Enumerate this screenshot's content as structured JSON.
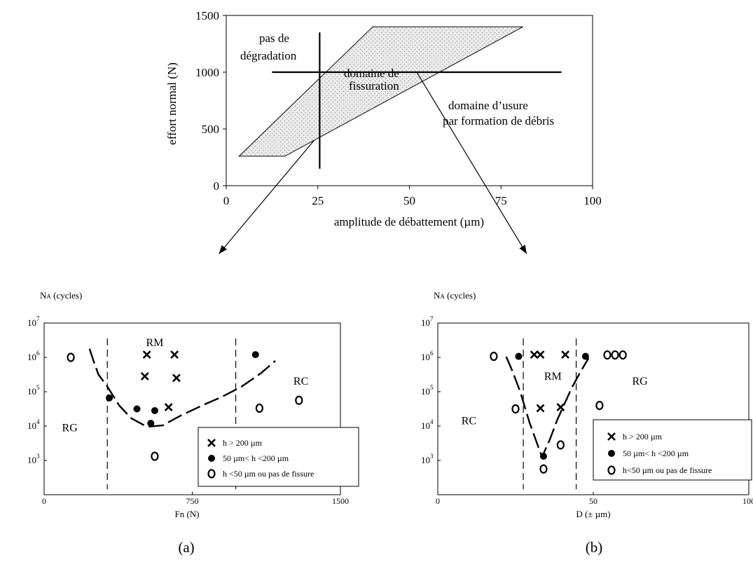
{
  "chart_data": [
    {
      "id": "top",
      "type": "area",
      "xlabel": "amplitude de débattement (µm)",
      "ylabel": "effort normal (N)",
      "xlim": [
        0,
        100
      ],
      "ylim": [
        0,
        1500
      ],
      "x_ticks": [
        0,
        25,
        50,
        75,
        100
      ],
      "y_ticks": [
        0,
        500,
        1000,
        1500
      ],
      "shaded_region": {
        "name": "domaine de fissuration",
        "polygon": [
          [
            3.5,
            260
          ],
          [
            40,
            1400
          ],
          [
            81,
            1400
          ],
          [
            16,
            260
          ]
        ]
      },
      "reference_lines": [
        {
          "orientation": "vertical",
          "x": 25.5,
          "y_range": [
            150,
            1350
          ]
        },
        {
          "orientation": "horizontal",
          "y": 1000,
          "x_range": [
            12.5,
            91.5
          ]
        }
      ],
      "annotations": {
        "no_damage_line1": "pas de",
        "no_damage_line2": "dégradation",
        "cracking_line1": "domaine de",
        "cracking_line2": "fissuration",
        "wear_line1": "domaine d’usure",
        "wear_line2": "par formation de débris"
      },
      "arrows": [
        {
          "from": [
            24,
            400
          ],
          "to": [
            -2,
            -600
          ]
        },
        {
          "from": [
            52,
            1000
          ],
          "to": [
            82,
            -600
          ]
        }
      ]
    },
    {
      "id": "a",
      "type": "scatter",
      "panel_label": "(a)",
      "y_axis_title_prefix": "N",
      "y_axis_title_sub": "A",
      "y_axis_title_suffix": " (cycles)",
      "xlabel": "Fn  (N)",
      "xlim": [
        0,
        1500
      ],
      "ylim_log10": [
        2,
        7
      ],
      "x_ticks": [
        0,
        750,
        1500
      ],
      "y_tick_exponents": [
        3,
        4,
        5,
        6,
        7
      ],
      "tick_base": "10",
      "regions": [
        {
          "label": "RM",
          "x": 560,
          "log_y": 6.33
        },
        {
          "label": "RC",
          "x": 1300,
          "log_y": 5.2
        },
        {
          "label": "RG",
          "x": 130,
          "log_y": 3.85
        }
      ],
      "dashed_verticals": [
        320,
        970
      ],
      "curve": [
        [
          230,
          6.25
        ],
        [
          250,
          5.9
        ],
        [
          275,
          5.5
        ],
        [
          320,
          5.15
        ],
        [
          380,
          4.6
        ],
        [
          440,
          4.23
        ],
        [
          520,
          3.98
        ],
        [
          600,
          4.02
        ],
        [
          690,
          4.3
        ],
        [
          800,
          4.6
        ],
        [
          900,
          4.85
        ],
        [
          1000,
          5.15
        ],
        [
          1100,
          5.55
        ],
        [
          1170,
          5.9
        ]
      ],
      "series": [
        {
          "name": "h > 200 µm",
          "marker": "cross",
          "points": [
            [
              520,
              6.08
            ],
            [
              660,
              6.08
            ],
            [
              510,
              5.45
            ],
            [
              670,
              5.4
            ],
            [
              630,
              4.55
            ]
          ]
        },
        {
          "name": "50 µm< h <200 µm",
          "marker": "dot",
          "points": [
            [
              330,
              4.82
            ],
            [
              1070,
              6.08
            ],
            [
              470,
              4.5
            ],
            [
              560,
              4.45
            ],
            [
              540,
              4.08
            ]
          ]
        },
        {
          "name": "h <50 µm ou pas de fissure",
          "marker": "ring",
          "points": [
            [
              135,
              6.0
            ],
            [
              1090,
              4.52
            ],
            [
              1290,
              4.75
            ],
            [
              560,
              3.12
            ]
          ]
        }
      ]
    },
    {
      "id": "b",
      "type": "scatter",
      "panel_label": "(b)",
      "y_axis_title_prefix": "N",
      "y_axis_title_sub": "A",
      "y_axis_title_suffix": " (cycles)",
      "xlabel": "D  (± µm)",
      "xlim": [
        0,
        100
      ],
      "ylim_log10": [
        2,
        7
      ],
      "x_ticks": [
        0,
        50,
        100
      ],
      "y_tick_exponents": [
        3,
        4,
        5,
        6,
        7
      ],
      "tick_base": "10",
      "regions": [
        {
          "label": "RM",
          "x": 37,
          "log_y": 5.35
        },
        {
          "label": "RG",
          "x": 65,
          "log_y": 5.2
        },
        {
          "label": "RC",
          "x": 10,
          "log_y": 4.05
        }
      ],
      "dashed_verticals": [
        27.5,
        44.5
      ],
      "curve": [
        [
          22,
          6.02
        ],
        [
          24,
          5.6
        ],
        [
          26.5,
          5.0
        ],
        [
          29.5,
          4.1
        ],
        [
          31.5,
          3.6
        ],
        [
          33.5,
          3.1
        ],
        [
          36,
          3.6
        ],
        [
          38.5,
          4.2
        ],
        [
          41,
          4.7
        ],
        [
          43,
          5.1
        ],
        [
          46,
          5.6
        ],
        [
          48.5,
          5.98
        ]
      ],
      "series": [
        {
          "name": "h > 200 µm",
          "marker": "cross",
          "points": [
            [
              31,
              6.08
            ],
            [
              33,
              6.08
            ],
            [
              41,
              6.08
            ],
            [
              33,
              4.52
            ],
            [
              39.5,
              4.55
            ]
          ]
        },
        {
          "name": "50 µm< h <200 µm",
          "marker": "dot",
          "points": [
            [
              26,
              6.03
            ],
            [
              47.5,
              6.03
            ],
            [
              34,
              3.12
            ]
          ]
        },
        {
          "name": "h<50 µm ou pas de fissure",
          "marker": "ring",
          "points": [
            [
              18,
              6.03
            ],
            [
              25,
              4.5
            ],
            [
              39.5,
              3.45
            ],
            [
              34,
              2.75
            ],
            [
              52,
              4.6
            ],
            [
              54.5,
              6.07
            ],
            [
              57,
              6.07
            ],
            [
              59.5,
              6.07
            ]
          ]
        }
      ]
    }
  ]
}
